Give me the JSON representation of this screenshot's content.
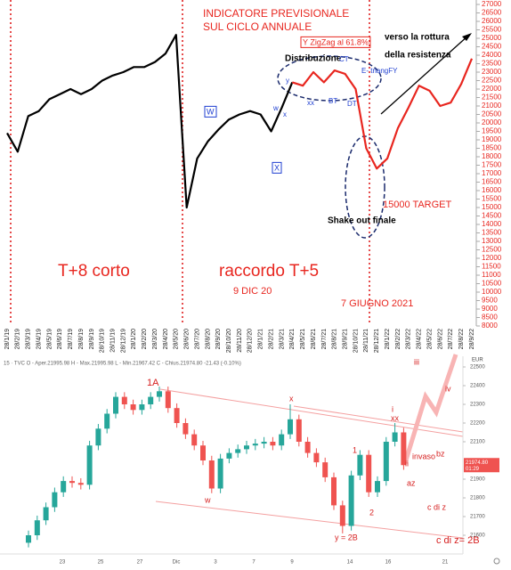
{
  "chart_data": [
    {
      "type": "line",
      "categories": [
        "28/1/19",
        "28/2/19",
        "28/3/19",
        "28/4/19",
        "28/5/19",
        "28/6/19",
        "28/7/19",
        "28/8/19",
        "28/9/19",
        "28/10/19",
        "28/11/19",
        "28/12/19",
        "28/1/20",
        "28/2/20",
        "28/3/20",
        "28/4/20",
        "28/5/20",
        "28/6/20",
        "28/7/20",
        "28/8/20",
        "28/9/20",
        "28/10/20",
        "28/11/20",
        "28/12/20",
        "28/1/21",
        "28/2/21",
        "28/3/21",
        "28/4/21",
        "28/5/21",
        "28/6/21",
        "28/7/21",
        "28/8/21",
        "28/9/21",
        "28/10/21",
        "28/11/21",
        "28/12/21",
        "28/1/22",
        "28/2/22",
        "28/3/22",
        "28/4/22",
        "28/5/22",
        "28/6/22",
        "28/7/22",
        "28/8/22",
        "28/9/22"
      ],
      "series": [
        {
          "color": "#000000",
          "values": [
            19400,
            18300,
            20400,
            20700,
            21400,
            21700,
            22000,
            21700,
            22000,
            22500,
            22800,
            23000,
            23300,
            23300,
            23600,
            24100,
            25200,
            15000,
            17900,
            18900,
            19600,
            20200,
            20500,
            20700,
            20500,
            19500,
            20900,
            22400,
            null,
            null,
            null,
            null,
            null,
            null,
            null,
            null,
            null,
            null,
            null,
            null,
            null,
            null,
            null,
            null,
            null
          ]
        },
        {
          "color": "#e8261f",
          "values": [
            null,
            null,
            null,
            null,
            null,
            null,
            null,
            null,
            null,
            null,
            null,
            null,
            null,
            null,
            null,
            null,
            null,
            null,
            null,
            null,
            null,
            null,
            null,
            null,
            null,
            null,
            null,
            22400,
            22200,
            23000,
            22400,
            23100,
            22900,
            22000,
            18500,
            17300,
            17900,
            19700,
            20900,
            22200,
            21900,
            21000,
            21200,
            22300,
            23800
          ]
        }
      ],
      "ylim": [
        8000,
        27000
      ],
      "yticks": [
        8000,
        8500,
        9000,
        9500,
        10000,
        10500,
        11000,
        11500,
        12000,
        12500,
        13000,
        13500,
        14000,
        14500,
        15000,
        15500,
        16000,
        16500,
        17000,
        17500,
        18000,
        18500,
        19000,
        19500,
        20000,
        20500,
        21000,
        21500,
        22000,
        22500,
        23000,
        23500,
        24000,
        24500,
        25000,
        25500,
        26000,
        26500,
        27000
      ],
      "annotations": [
        "INDICATORE PREVISIONALE",
        "SUL CICLO ANNUALE",
        "Y ZigZag al  61.8%",
        "Distribuzione",
        "CT",
        "E- triangFY",
        "verso la rottura",
        "della resistenza",
        "y",
        "w",
        "x",
        "W",
        "X",
        "xx",
        "BT",
        "DT",
        "15000 TARGET",
        "Shake out finale",
        "T+8 corto",
        "raccordo T+5",
        "9 DIC 20",
        "7 GIUGNO 2021"
      ]
    },
    {
      "type": "candlestick",
      "header": "15 · TVC   O - Aper.21995.98  H - Max.21995.98  L - Min.21967.42  C - Chius.21974.80  -21.43 (-0.10%)",
      "unit": "EUR",
      "open": [
        21560,
        21600,
        21680,
        21750,
        21830,
        21890,
        21880,
        21870,
        22080,
        22170,
        22250,
        22340,
        22300,
        22270,
        22300,
        22340,
        22370,
        22280,
        22200,
        22140,
        22080,
        22000,
        21850,
        22010,
        22040,
        22060,
        22080,
        22090,
        22100,
        22080,
        22140,
        22220,
        22100,
        22040,
        21990,
        21910,
        21760,
        21650,
        21920,
        22030,
        21830,
        21890,
        22100,
        22150
      ],
      "high": [
        21625,
        21705,
        21775,
        21855,
        21915,
        21915,
        21905,
        22105,
        22195,
        22275,
        22365,
        22365,
        22325,
        22325,
        22365,
        22395,
        22395,
        22305,
        22225,
        22165,
        22105,
        22025,
        22035,
        22065,
        22085,
        22105,
        22115,
        22125,
        22125,
        22165,
        22300,
        22245,
        22125,
        22065,
        22015,
        21935,
        21785,
        21945,
        22055,
        22055,
        21915,
        22125,
        22200,
        22175
      ],
      "low": [
        21535,
        21575,
        21655,
        21725,
        21805,
        21855,
        21845,
        21845,
        22055,
        22145,
        22225,
        22275,
        22245,
        22245,
        22275,
        22315,
        22255,
        22175,
        22115,
        22055,
        21975,
        21825,
        21825,
        21985,
        22015,
        22035,
        22055,
        22065,
        22055,
        22055,
        22115,
        22075,
        22015,
        21965,
        21885,
        21735,
        21610,
        21625,
        21895,
        21805,
        21805,
        21865,
        22075,
        21950
      ],
      "close": [
        21600,
        21680,
        21750,
        21830,
        21890,
        21880,
        21870,
        22080,
        22170,
        22250,
        22340,
        22300,
        22270,
        22300,
        22340,
        22370,
        22280,
        22200,
        22140,
        22080,
        22000,
        21850,
        22010,
        22040,
        22060,
        22080,
        22090,
        22100,
        22080,
        22140,
        22220,
        22100,
        22040,
        21990,
        21910,
        21760,
        21650,
        21920,
        22030,
        21830,
        21890,
        22100,
        22150,
        21975
      ],
      "up_color": "#26a69a",
      "down_color": "#ef5350",
      "ylim": [
        21500,
        22500
      ],
      "yticks": [
        21600,
        21700,
        21800,
        21900,
        22100,
        22200,
        22300,
        22400,
        22500
      ],
      "price_label": "21974.80",
      "time_label": "01:29",
      "xtick_labels": [
        "23",
        "25",
        "27",
        "Dic",
        "3",
        "7",
        "9",
        "14",
        "16",
        "21"
      ],
      "annotations": [
        "1A",
        "x",
        "w",
        "1",
        "2",
        "y = 2B",
        "i",
        "xx",
        "ii",
        "iii",
        "iv",
        "invaso",
        "bz",
        "az",
        "c di z",
        "c di z= 2B"
      ]
    }
  ]
}
